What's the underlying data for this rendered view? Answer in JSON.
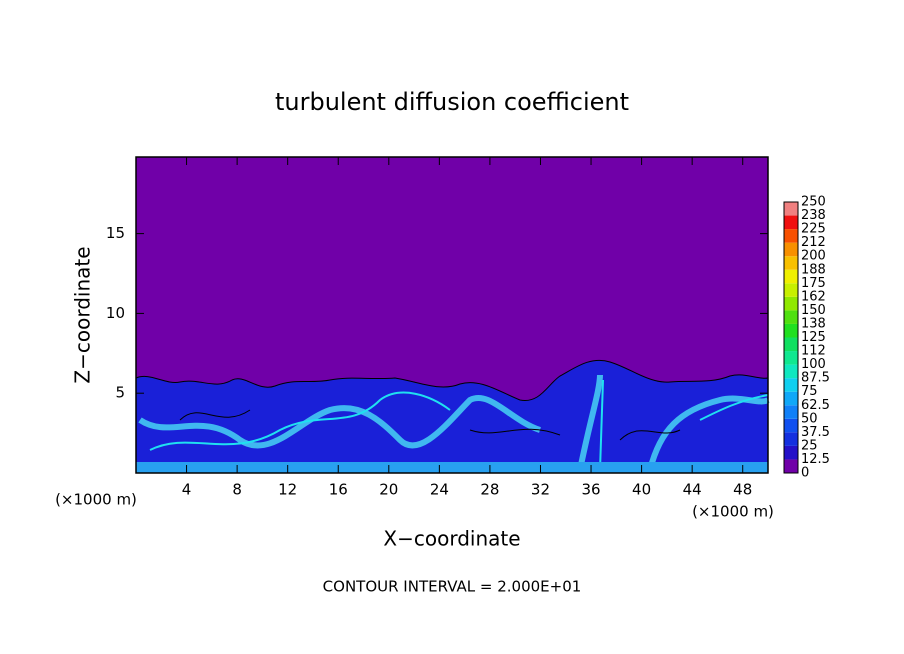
{
  "chart_data": {
    "type": "contour",
    "title": "turbulent diffusion coefficient",
    "x_label": "X−coordinate",
    "y_label": "Z−coordinate",
    "x_unit": "(×1000 m)",
    "footnote": "CONTOUR INTERVAL = 2.000E+01",
    "xlim": [
      0,
      50
    ],
    "ylim": [
      0,
      19.8
    ],
    "xticks": [
      4,
      8,
      12,
      16,
      20,
      24,
      28,
      32,
      36,
      40,
      44,
      48
    ],
    "yticks": [
      5,
      10,
      15
    ],
    "colorbar": {
      "levels": [
        0,
        12.5,
        25,
        37.5,
        50,
        62.5,
        75,
        87.5,
        100,
        112,
        125,
        138,
        150,
        162,
        175,
        188,
        200,
        212,
        225,
        238,
        250
      ],
      "colors": [
        "#7000a8",
        "#2410c8",
        "#1430e0",
        "#1050f0",
        "#1080f8",
        "#10a8f8",
        "#10d0f0",
        "#10e8c0",
        "#10e890",
        "#10e060",
        "#20e020",
        "#50e010",
        "#90e800",
        "#c8f000",
        "#f0f000",
        "#f8c000",
        "#f89000",
        "#f85000",
        "#f01010",
        "#f08080"
      ]
    }
  }
}
